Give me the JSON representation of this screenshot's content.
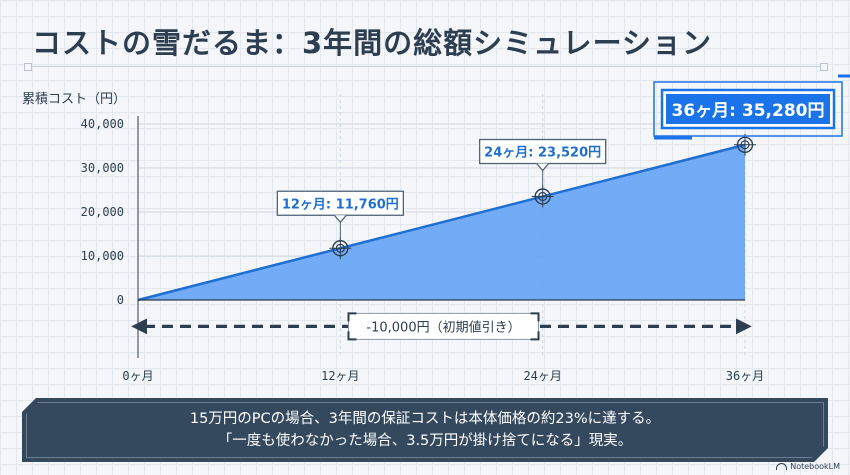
{
  "title": "コストの雪だるま：3年間の総額シミュレーション",
  "chart_data": {
    "type": "area",
    "ylabel": "累積コスト（円）",
    "x": [
      0,
      36
    ],
    "y": [
      0,
      35280
    ],
    "xticks": [
      {
        "value": 0,
        "label": "0ヶ月"
      },
      {
        "value": 12,
        "label": "12ヶ月"
      },
      {
        "value": 24,
        "label": "24ヶ月"
      },
      {
        "value": 36,
        "label": "36ヶ月"
      }
    ],
    "yticks": [
      {
        "value": 0,
        "label": "0"
      },
      {
        "value": 10000,
        "label": "10,000"
      },
      {
        "value": 20000,
        "label": "20,000"
      },
      {
        "value": 30000,
        "label": "30,000"
      },
      {
        "value": 40000,
        "label": "40,000"
      }
    ],
    "xlim": [
      0,
      36
    ],
    "ylim": [
      -10000,
      40000
    ],
    "markers": [
      {
        "x": 12,
        "y": 11760,
        "label": "12ヶ月: 11,760円"
      },
      {
        "x": 24,
        "y": 23520,
        "label": "24ヶ月: 23,520円"
      },
      {
        "x": 36,
        "y": 35280,
        "label": "36ヶ月: 35,280円",
        "highlight": true
      }
    ],
    "range_annotation": {
      "from": 0,
      "to": 36,
      "y": -6000,
      "label": "-10,000円（初期値引き）"
    },
    "grid": true,
    "colors": {
      "fill": "#6aa6f5",
      "line": "#1f6fd1",
      "accent": "#1a73e8",
      "text": "#2c3e50"
    }
  },
  "footer": {
    "line1": "15万円のPCの場合、3年間の保証コストは本体価格の約23%に達する。",
    "line2": "「一度も使わなかった場合、3.5万円が掛け捨てになる」現実。"
  },
  "brand": "NotebookLM"
}
